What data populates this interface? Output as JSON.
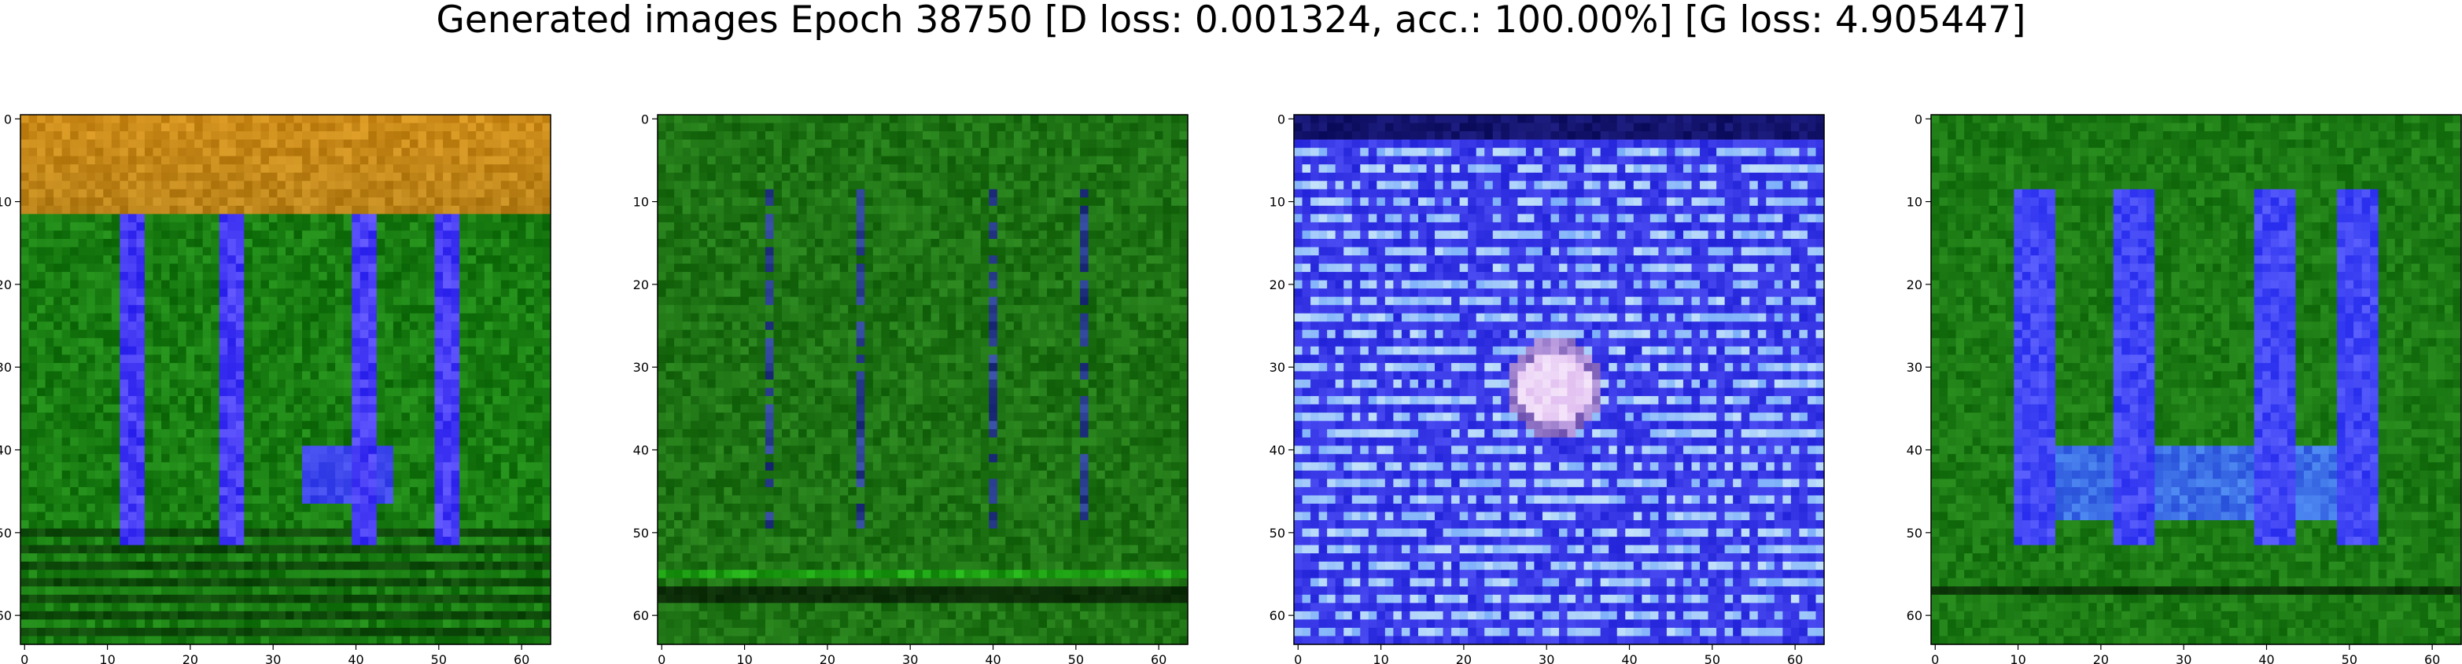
{
  "figure": {
    "title": "Generated images Epoch 38750 [D loss: 0.001324, acc.: 100.00%] [G loss: 4.905447]"
  },
  "panels": [
    {
      "style": "orange-top-green-bars",
      "base": "#197a12",
      "bar": "#4b46ff",
      "band": "#c98b18"
    },
    {
      "style": "dark-green-thin-bars",
      "base": "#1f7616",
      "bar": "#283c8a",
      "band": "#1f7616"
    },
    {
      "style": "blue-striped-bright-spot",
      "base": "#3c3cf0",
      "bar": "#9ec6ff",
      "band": "#2020c8"
    },
    {
      "style": "green-blue-bars-joined",
      "base": "#1e7a16",
      "bar": "#4a4cff",
      "band": "#1e7a16"
    }
  ],
  "axes": {
    "xlim": [
      -0.5,
      63.5
    ],
    "ylim": [
      63.5,
      -0.5
    ],
    "xticks": [
      0,
      10,
      20,
      30,
      40,
      50,
      60
    ],
    "yticks": [
      0,
      10,
      20,
      30,
      40,
      50,
      60
    ],
    "xtick_labels": [
      "0",
      "10",
      "20",
      "30",
      "40",
      "50",
      "60"
    ],
    "ytick_labels": [
      "0",
      "10",
      "20",
      "30",
      "40",
      "50",
      "60"
    ]
  },
  "image_grid": {
    "rows": 64,
    "cols": 64
  },
  "colors": {
    "green": "#1a7d10",
    "dark_green": "#0d5208",
    "blue": "#4a4aff",
    "orange": "#d89a1c",
    "white_spot": "#f4eaff",
    "axis": "#000000"
  }
}
